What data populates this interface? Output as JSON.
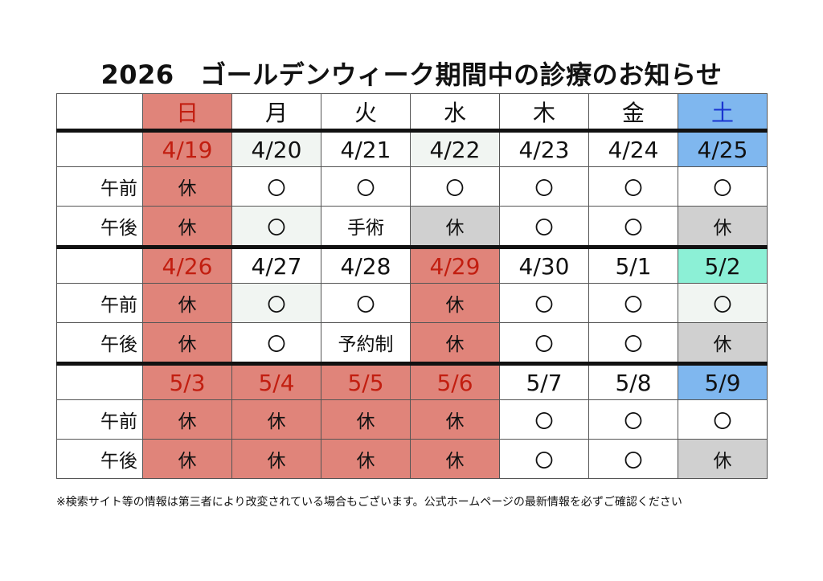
{
  "title": "2026　ゴールデンウィーク期間中の診療のお知らせ",
  "weekdays": [
    "日",
    "月",
    "火",
    "水",
    "木",
    "金",
    "土"
  ],
  "row_labels": {
    "am": "午前",
    "pm": "午後"
  },
  "weeks": [
    {
      "dates": [
        "4/19",
        "4/20",
        "4/21",
        "4/22",
        "4/23",
        "4/24",
        "4/25"
      ],
      "am": [
        "休",
        "〇",
        "〇",
        "〇",
        "〇",
        "〇",
        "〇"
      ],
      "pm": [
        "休",
        "〇",
        "手術",
        "休",
        "〇",
        "〇",
        "休"
      ]
    },
    {
      "dates": [
        "4/26",
        "4/27",
        "4/28",
        "4/29",
        "4/30",
        "5/1",
        "5/2"
      ],
      "am": [
        "休",
        "〇",
        "〇",
        "休",
        "〇",
        "〇",
        "〇"
      ],
      "pm": [
        "休",
        "〇",
        "予約制",
        "休",
        "〇",
        "〇",
        "休"
      ]
    },
    {
      "dates": [
        "5/3",
        "5/4",
        "5/5",
        "5/6",
        "5/7",
        "5/8",
        "5/9"
      ],
      "am": [
        "休",
        "休",
        "休",
        "休",
        "〇",
        "〇",
        "〇"
      ],
      "pm": [
        "休",
        "休",
        "休",
        "休",
        "〇",
        "〇",
        "休"
      ]
    }
  ],
  "colors": {
    "holiday": "#e0847a",
    "saturday": "#7fb7ef",
    "saturday_holiday": "#8cf0d6",
    "closed": "#d0d0d0"
  },
  "note": "※検索サイト等の情報は第三者により改変されている場合もございます。公式ホームページの最新情報を必ずご確認ください"
}
